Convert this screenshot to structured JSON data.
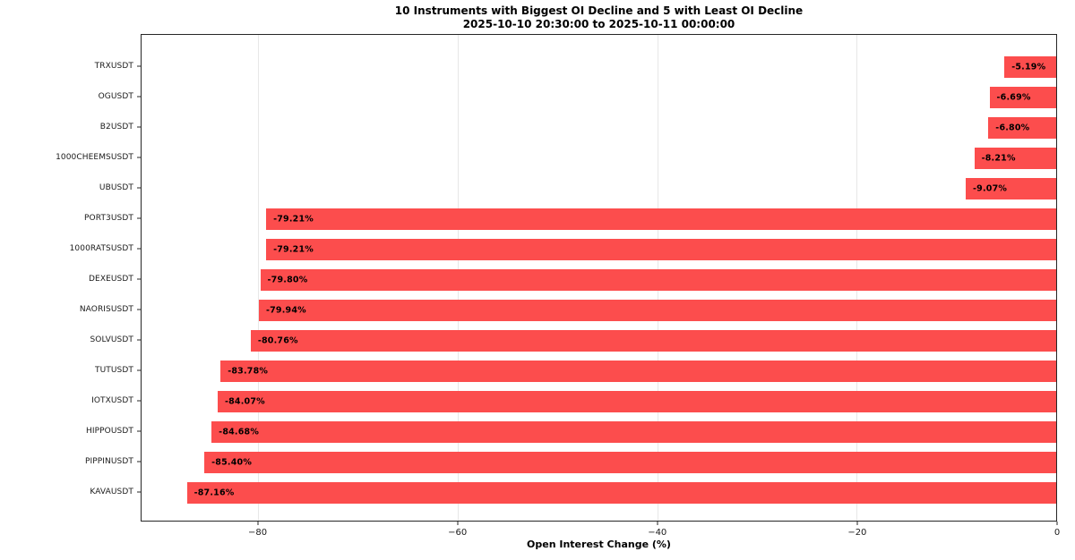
{
  "title": {
    "line1": "10 Instruments with Biggest OI Decline and 5 with Least OI Decline",
    "line2": "2025-10-10 20:30:00 to 2025-10-11 00:00:00"
  },
  "chart_data": {
    "type": "bar",
    "orientation": "horizontal",
    "title": "10 Instruments with Biggest OI Decline and 5 with Least OI Decline",
    "subtitle": "2025-10-10 20:30:00 to 2025-10-11 00:00:00",
    "categories": [
      "TRXUSDT",
      "OGUSDT",
      "B2USDT",
      "1000CHEEMSUSDT",
      "UBUSDT",
      "PORT3USDT",
      "1000RATSUSDT",
      "DEXEUSDT",
      "NAORISUSDT",
      "SOLVUSDT",
      "TUTUSDT",
      "IOTXUSDT",
      "HIPPOUSDT",
      "PIPPINUSDT",
      "KAVAUSDT"
    ],
    "values": [
      -5.19,
      -6.69,
      -6.8,
      -8.21,
      -9.07,
      -79.21,
      -79.21,
      -79.8,
      -79.94,
      -80.76,
      -83.78,
      -84.07,
      -84.68,
      -85.4,
      -87.16
    ],
    "bar_labels": [
      "-5.19%",
      "-6.69%",
      "-6.80%",
      "-8.21%",
      "-9.07%",
      "-79.21%",
      "-79.21%",
      "-79.80%",
      "-79.94%",
      "-80.76%",
      "-83.78%",
      "-84.07%",
      "-84.68%",
      "-85.40%",
      "-87.16%"
    ],
    "xlabel": "Open Interest Change (%)",
    "ylabel": "",
    "xticks": [
      {
        "value": -80,
        "label": "−80"
      },
      {
        "value": -60,
        "label": "−60"
      },
      {
        "value": -40,
        "label": "−40"
      },
      {
        "value": -20,
        "label": "−20"
      },
      {
        "value": 0,
        "label": "0"
      }
    ],
    "xlim": [
      -91.7,
      0
    ],
    "grid": true,
    "legend": "none",
    "colors": {
      "bar": "#fc4d4d",
      "gridline": "#e7e7e7",
      "spine": "#262626",
      "text": "#000000",
      "background": "#ffffff"
    }
  }
}
